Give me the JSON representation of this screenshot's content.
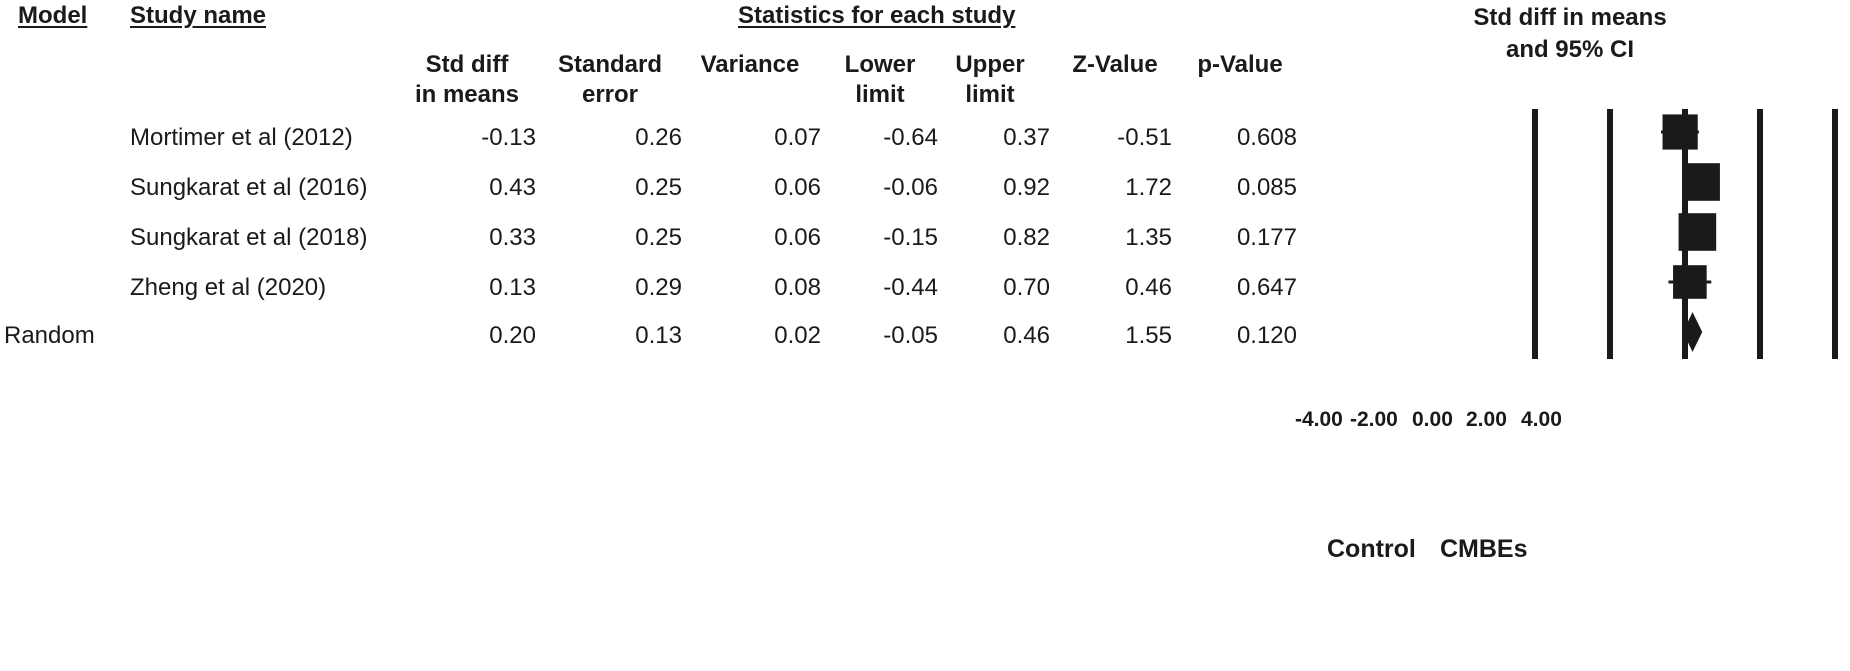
{
  "headers": {
    "model": "Model",
    "study_name": "Study name",
    "statistics": "Statistics for each study",
    "plot_title_line1": "Std diff in means",
    "plot_title_line2": "and 95% CI"
  },
  "columns": [
    [
      "Std diff",
      "in means"
    ],
    [
      "Standard",
      "error"
    ],
    [
      "",
      "Variance"
    ],
    [
      "Lower",
      "limit"
    ],
    [
      "Upper",
      "limit"
    ],
    [
      "",
      "Z-Value"
    ],
    [
      "",
      "p-Value"
    ]
  ],
  "rows": [
    {
      "model": "",
      "name": "Mortimer et al (2012)",
      "values": [
        "-0.13",
        "0.26",
        "0.07",
        "-0.64",
        "0.37",
        "-0.51",
        "0.608"
      ]
    },
    {
      "model": "",
      "name": "Sungkarat et al (2016)",
      "values": [
        "0.43",
        "0.25",
        "0.06",
        "-0.06",
        "0.92",
        "1.72",
        "0.085"
      ]
    },
    {
      "model": "",
      "name": "Sungkarat et al (2018)",
      "values": [
        "0.33",
        "0.25",
        "0.06",
        "-0.15",
        "0.82",
        "1.35",
        "0.177"
      ]
    },
    {
      "model": "",
      "name": "Zheng et al (2020)",
      "values": [
        "0.13",
        "0.29",
        "0.08",
        "-0.44",
        "0.70",
        "0.46",
        "0.647"
      ]
    },
    {
      "model": "Random",
      "name": "",
      "values": [
        "0.20",
        "0.13",
        "0.02",
        "-0.05",
        "0.46",
        "1.55",
        "0.120"
      ]
    }
  ],
  "axis": {
    "tick_labels": [
      "-4.00",
      "-2.00",
      "0.00",
      "2.00",
      "4.00"
    ],
    "left_label": "Control",
    "right_label": "CMBEs"
  },
  "chart_data": {
    "type": "forest",
    "title": "Std diff in means and 95% CI",
    "xlim": [
      -4,
      4
    ],
    "xticks": [
      -4,
      -2,
      0,
      2,
      4
    ],
    "gridlines": [
      -4,
      -2,
      0,
      2,
      4
    ],
    "studies": [
      {
        "name": "Mortimer et al (2012)",
        "estimate": -0.13,
        "lower": -0.64,
        "upper": 0.37,
        "weight": 0.24
      },
      {
        "name": "Sungkarat et al (2016)",
        "estimate": 0.43,
        "lower": -0.06,
        "upper": 0.92,
        "weight": 0.27
      },
      {
        "name": "Sungkarat et al (2018)",
        "estimate": 0.33,
        "lower": -0.15,
        "upper": 0.82,
        "weight": 0.27
      },
      {
        "name": "Zheng et al (2020)",
        "estimate": 0.13,
        "lower": -0.44,
        "upper": 0.7,
        "weight": 0.22
      }
    ],
    "summary": {
      "name": "Random",
      "estimate": 0.2,
      "lower": -0.05,
      "upper": 0.46
    },
    "colors": {
      "marker": "#1a1a1a",
      "line": "#1a1a1a"
    }
  }
}
